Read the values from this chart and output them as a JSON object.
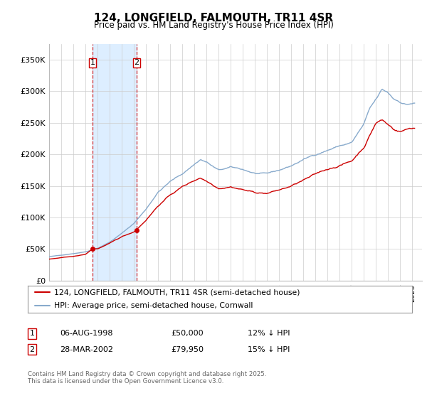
{
  "title": "124, LONGFIELD, FALMOUTH, TR11 4SR",
  "subtitle": "Price paid vs. HM Land Registry's House Price Index (HPI)",
  "legend_entries": [
    "124, LONGFIELD, FALMOUTH, TR11 4SR (semi-detached house)",
    "HPI: Average price, semi-detached house, Cornwall"
  ],
  "annotation1": {
    "label": "1",
    "date_str": "06-AUG-1998",
    "price": "£50,000",
    "pct": "12% ↓ HPI"
  },
  "annotation2": {
    "label": "2",
    "date_str": "28-MAR-2002",
    "price": "£79,950",
    "pct": "15% ↓ HPI"
  },
  "footnote": "Contains HM Land Registry data © Crown copyright and database right 2025.\nThis data is licensed under the Open Government Licence v3.0.",
  "ylim": [
    0,
    375000
  ],
  "yticks": [
    0,
    50000,
    100000,
    150000,
    200000,
    250000,
    300000,
    350000
  ],
  "ytick_labels": [
    "£0",
    "£50K",
    "£100K",
    "£150K",
    "£200K",
    "£250K",
    "£300K",
    "£350K"
  ],
  "shade_x1": 1998.6,
  "shade_x2": 2002.24,
  "red_line_color": "#cc0000",
  "blue_line_color": "#88aacc",
  "shade_color": "#ddeeff",
  "vline_color": "#cc0000",
  "background_color": "#ffffff",
  "sale1_x": 1998.6,
  "sale1_y": 50000,
  "sale2_x": 2002.24,
  "sale2_y": 79950,
  "xlim": [
    1995.0,
    2025.8
  ],
  "xticks": [
    1995,
    1996,
    1997,
    1998,
    1999,
    2000,
    2001,
    2002,
    2003,
    2004,
    2005,
    2006,
    2007,
    2008,
    2009,
    2010,
    2011,
    2012,
    2013,
    2014,
    2015,
    2016,
    2017,
    2018,
    2019,
    2020,
    2021,
    2022,
    2023,
    2024,
    2025
  ]
}
